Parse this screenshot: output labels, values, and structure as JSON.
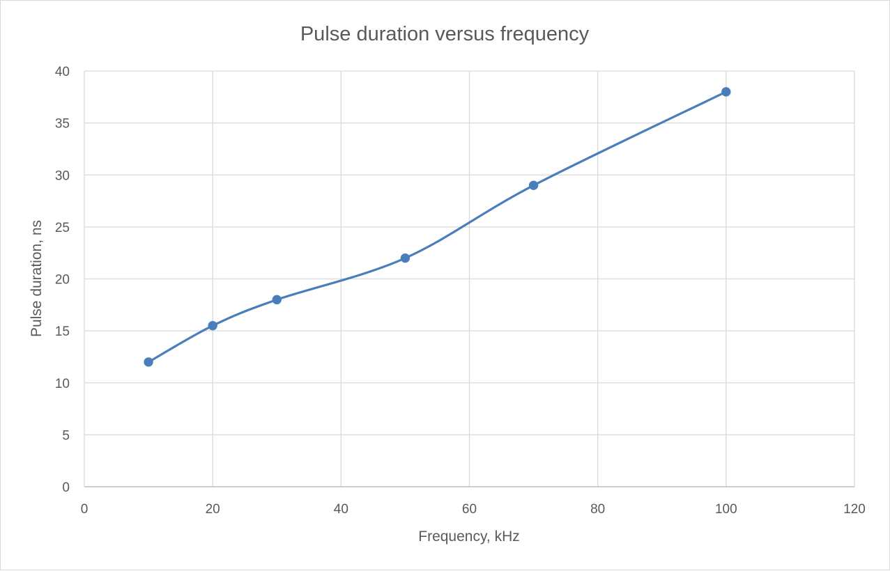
{
  "chart_data": {
    "type": "scatter",
    "title": "Pulse duration versus frequency",
    "xlabel": "Frequency, kHz",
    "ylabel": "Pulse duration, ns",
    "xlim": [
      0,
      120
    ],
    "ylim": [
      0,
      40
    ],
    "x_ticks": [
      0,
      20,
      40,
      60,
      80,
      100,
      120
    ],
    "y_ticks": [
      0,
      5,
      10,
      15,
      20,
      25,
      30,
      35,
      40
    ],
    "grid": true,
    "legend": "none",
    "smoothed_line": true,
    "series": [
      {
        "color": "#4a7ebb",
        "x": [
          10,
          20,
          30,
          50,
          70,
          100
        ],
        "y": [
          12,
          15.5,
          18,
          22,
          29,
          38
        ]
      }
    ]
  }
}
